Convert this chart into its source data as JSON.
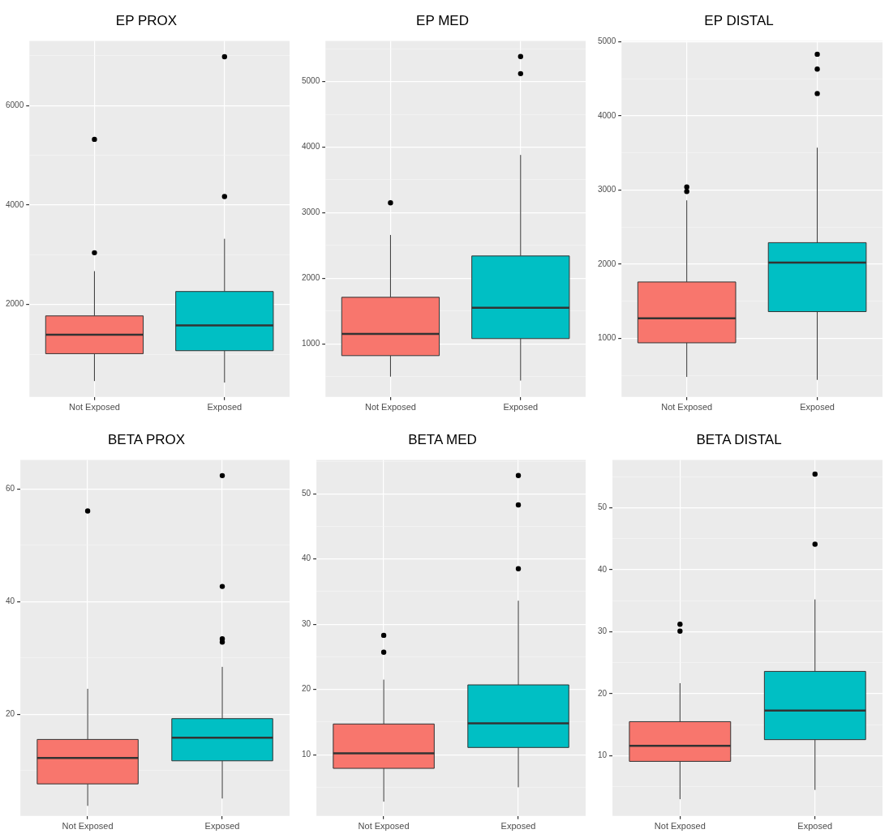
{
  "chart_data": [
    {
      "type": "box",
      "title": "EP PROX",
      "categories": [
        "Not Exposed",
        "Exposed"
      ],
      "colors": [
        "#f8766d",
        "#00bfc4"
      ],
      "ylim": [
        140,
        7300
      ],
      "yticks": [
        {
          "value": 1000,
          "label": null
        },
        2000,
        {
          "value": 3000,
          "label": null
        },
        4000,
        {
          "value": 5000,
          "label": null
        },
        6000,
        {
          "value": 7000,
          "label": null
        }
      ],
      "grid": true,
      "boxes": [
        {
          "low": 460,
          "q1": 1010,
          "median": 1390,
          "q3": 1770,
          "high": 2670,
          "outliers": [
            3040,
            5320
          ]
        },
        {
          "low": 430,
          "q1": 1070,
          "median": 1580,
          "q3": 2260,
          "high": 3320,
          "outliers": [
            4170,
            6980
          ]
        }
      ]
    },
    {
      "type": "box",
      "title": "EP MED",
      "categories": [
        "Not Exposed",
        "Exposed"
      ],
      "colors": [
        "#f8766d",
        "#00bfc4"
      ],
      "ylim": [
        190,
        5620
      ],
      "yticks": [
        {
          "value": 500,
          "label": null
        },
        1000,
        {
          "value": 1500,
          "label": null
        },
        2000,
        {
          "value": 2500,
          "label": null
        },
        3000,
        {
          "value": 3500,
          "label": null
        },
        4000,
        {
          "value": 4500,
          "label": null
        },
        5000,
        {
          "value": 5500,
          "label": null
        }
      ],
      "grid": true,
      "boxes": [
        {
          "low": 500,
          "q1": 820,
          "median": 1150,
          "q3": 1710,
          "high": 2660,
          "outliers": [
            3150
          ]
        },
        {
          "low": 440,
          "q1": 1080,
          "median": 1550,
          "q3": 2340,
          "high": 3880,
          "outliers": [
            5120,
            5380
          ]
        }
      ]
    },
    {
      "type": "box",
      "title": "EP DISTAL",
      "categories": [
        "Not Exposed",
        "Exposed"
      ],
      "colors": [
        "#f8766d",
        "#00bfc4"
      ],
      "ylim": [
        210,
        5010
      ],
      "yticks": [
        {
          "value": 500,
          "label": null
        },
        1000,
        {
          "value": 1500,
          "label": null
        },
        2000,
        {
          "value": 2500,
          "label": null
        },
        3000,
        {
          "value": 3500,
          "label": null
        },
        4000,
        {
          "value": 4500,
          "label": null
        },
        5000
      ],
      "grid": true,
      "boxes": [
        {
          "low": 480,
          "q1": 940,
          "median": 1270,
          "q3": 1760,
          "high": 2860,
          "outliers": [
            2980,
            3040
          ]
        },
        {
          "low": 440,
          "q1": 1360,
          "median": 2020,
          "q3": 2290,
          "high": 3570,
          "outliers": [
            4300,
            4630,
            4830
          ]
        }
      ]
    },
    {
      "type": "box",
      "title": "BETA PROX",
      "categories": [
        "Not Exposed",
        "Exposed"
      ],
      "colors": [
        "#f8766d",
        "#00bfc4"
      ],
      "ylim": [
        1.9,
        65.2
      ],
      "yticks": [
        {
          "value": 10,
          "label": null
        },
        20,
        {
          "value": 30,
          "label": null
        },
        40,
        {
          "value": 50,
          "label": null
        },
        60
      ],
      "grid": true,
      "boxes": [
        {
          "low": 3.7,
          "q1": 7.6,
          "median": 12.2,
          "q3": 15.5,
          "high": 24.5,
          "outliers": [
            56.1
          ]
        },
        {
          "low": 5,
          "q1": 11.7,
          "median": 15.8,
          "q3": 19.2,
          "high": 28.4,
          "outliers": [
            32.8,
            33.4,
            42.7,
            62.4
          ]
        }
      ]
    },
    {
      "type": "box",
      "title": "BETA MED",
      "categories": [
        "Not Exposed",
        "Exposed"
      ],
      "colors": [
        "#f8766d",
        "#00bfc4"
      ],
      "ylim": [
        0.6,
        55.2
      ],
      "yticks": [
        {
          "value": 5,
          "label": null
        },
        10,
        {
          "value": 15,
          "label": null
        },
        20,
        {
          "value": 25,
          "label": null
        },
        30,
        {
          "value": 35,
          "label": null
        },
        40,
        {
          "value": 45,
          "label": null
        },
        50,
        {
          "value": 55,
          "label": null
        }
      ],
      "grid": true,
      "boxes": [
        {
          "low": 2.8,
          "q1": 7.9,
          "median": 10.2,
          "q3": 14.7,
          "high": 21.5,
          "outliers": [
            25.7,
            28.3
          ]
        },
        {
          "low": 5,
          "q1": 11.1,
          "median": 14.8,
          "q3": 20.7,
          "high": 33.6,
          "outliers": [
            38.5,
            48.3,
            52.8
          ]
        }
      ]
    },
    {
      "type": "box",
      "title": "BETA DISTAL",
      "categories": [
        "Not Exposed",
        "Exposed"
      ],
      "colors": [
        "#f8766d",
        "#00bfc4"
      ],
      "ylim": [
        0.3,
        57.7
      ],
      "yticks": [
        {
          "value": 5,
          "label": null
        },
        10,
        {
          "value": 15,
          "label": null
        },
        20,
        {
          "value": 25,
          "label": null
        },
        30,
        {
          "value": 35,
          "label": null
        },
        40,
        {
          "value": 45,
          "label": null
        },
        50,
        {
          "value": 55,
          "label": null
        }
      ],
      "grid": true,
      "boxes": [
        {
          "low": 3,
          "q1": 9.1,
          "median": 11.6,
          "q3": 15.5,
          "high": 21.7,
          "outliers": [
            30.1,
            31.2
          ]
        },
        {
          "low": 4.5,
          "q1": 12.6,
          "median": 17.3,
          "q3": 23.6,
          "high": 35.2,
          "outliers": [
            44.1,
            55.4
          ]
        }
      ]
    }
  ]
}
